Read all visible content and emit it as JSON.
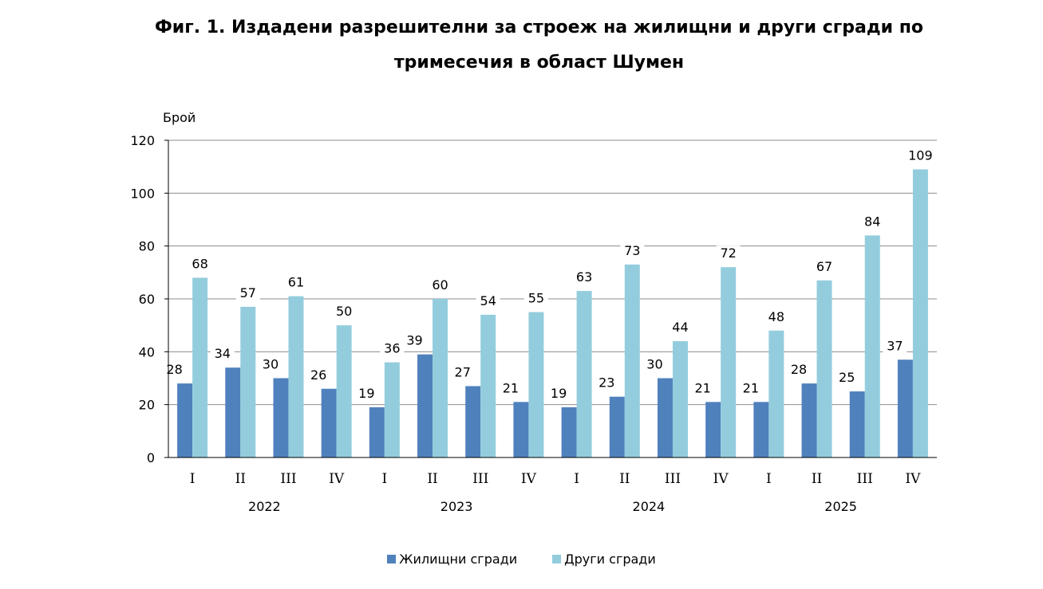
{
  "title_line1": "Фиг. 1. Издадени разрешителни за строеж на жилищни и други сгради по",
  "title_line2": "тримесечия в област Шумен",
  "chart_data": {
    "type": "bar",
    "title": "Фиг. 1. Издадени разрешителни за строеж на жилищни и други сгради по тримесечия в област Шумен",
    "ylabel": "Брой",
    "xlabel": "",
    "ylim": [
      0,
      120
    ],
    "yticks": [
      0,
      20,
      40,
      60,
      80,
      100,
      120
    ],
    "grid": true,
    "legend_position": "bottom",
    "categories": [
      "I",
      "II",
      "III",
      "IV",
      "I",
      "II",
      "III",
      "IV",
      "I",
      "II",
      "III",
      "IV",
      "I",
      "II",
      "III",
      "IV"
    ],
    "years": [
      "2022",
      "2023",
      "2024",
      "2025"
    ],
    "series": [
      {
        "name": "Жилищни сгради",
        "color": "#4f81bd",
        "values": [
          28,
          34,
          30,
          26,
          19,
          39,
          27,
          21,
          19,
          23,
          30,
          21,
          21,
          28,
          25,
          37
        ]
      },
      {
        "name": "Други сгради",
        "color": "#93cddd",
        "values": [
          68,
          57,
          61,
          50,
          36,
          60,
          54,
          55,
          63,
          73,
          44,
          72,
          48,
          67,
          84,
          109
        ]
      }
    ]
  }
}
